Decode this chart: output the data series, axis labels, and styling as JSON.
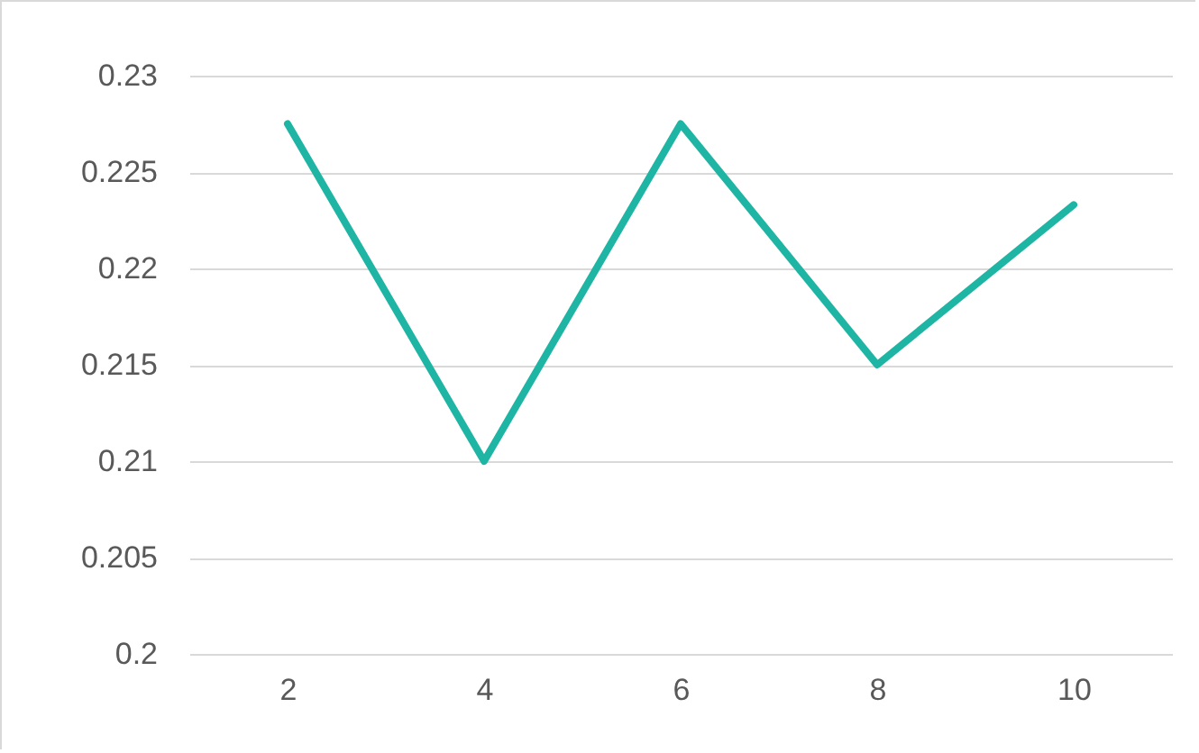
{
  "chart_data": {
    "type": "line",
    "categories": [
      "2",
      "4",
      "6",
      "8",
      "10"
    ],
    "series": [
      {
        "color": "#1fb5a4",
        "values": [
          0.2275,
          0.21,
          0.2275,
          0.215,
          0.2233
        ]
      }
    ],
    "ylim": [
      0.2,
      0.23
    ],
    "yticks": [
      0.2,
      0.205,
      0.21,
      0.215,
      0.22,
      0.225,
      0.23
    ],
    "grid": "y",
    "legend": false,
    "marker": "none",
    "line_style": "solid"
  }
}
